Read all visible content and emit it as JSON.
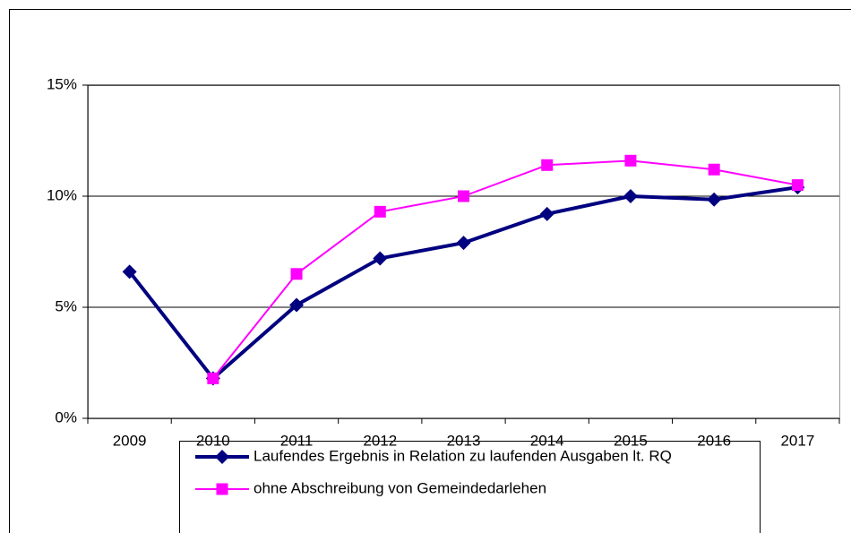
{
  "chart_data": {
    "type": "line",
    "categories": [
      "2009",
      "2010",
      "2011",
      "2012",
      "2013",
      "2014",
      "2015",
      "2016",
      "2017"
    ],
    "series": [
      {
        "name": "Laufendes Ergebnis in Relation zu laufenden Ausgaben lt. RQ",
        "color": "#000080",
        "marker": "diamond",
        "values": [
          6.6,
          1.8,
          5.1,
          7.2,
          7.9,
          9.2,
          10.0,
          9.85,
          10.4
        ]
      },
      {
        "name": "ohne Abschreibung von Gemeindedarlehen",
        "color": "#ff00ff",
        "marker": "square",
        "values": [
          null,
          1.8,
          6.5,
          9.3,
          10.0,
          11.4,
          11.6,
          11.2,
          10.5
        ]
      }
    ],
    "ylim": [
      0,
      15
    ],
    "yticks": [
      {
        "value": 0,
        "label": "0%"
      },
      {
        "value": 5,
        "label": "5%"
      },
      {
        "value": 10,
        "label": "10%"
      },
      {
        "value": 15,
        "label": "15%"
      }
    ],
    "grid": true
  }
}
